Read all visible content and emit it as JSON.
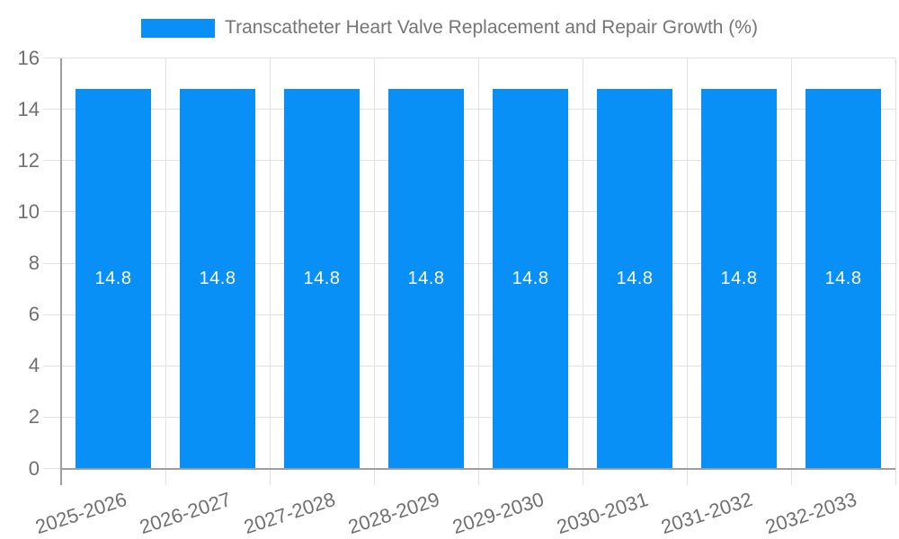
{
  "legend": {
    "label": "Transcatheter Heart Valve Replacement and Repair Growth (%)"
  },
  "chart_data": {
    "type": "bar",
    "title": "Transcatheter Heart Valve Replacement and Repair Growth (%)",
    "series_name": "Transcatheter Heart Valve Replacement and Repair Growth (%)",
    "categories": [
      "2025-2026",
      "2026-2027",
      "2027-2028",
      "2028-2029",
      "2029-2030",
      "2030-2031",
      "2031-2032",
      "2032-2033"
    ],
    "values": [
      14.8,
      14.8,
      14.8,
      14.8,
      14.8,
      14.8,
      14.8,
      14.8
    ],
    "value_label_decimals": 1,
    "xlabel": "",
    "ylabel": "",
    "ylim": [
      0,
      16
    ],
    "yticks": [
      0,
      2,
      4,
      6,
      8,
      10,
      12,
      14,
      16
    ],
    "grid": true,
    "legend_position": "top"
  },
  "colors": {
    "bar": "#0990f6",
    "grid": "#e2e2e2",
    "axis": "#9e9e9e",
    "tick_text": "#707070",
    "legend_text": "#757575",
    "value_label": "#ffffff",
    "background": "#ffffff"
  }
}
